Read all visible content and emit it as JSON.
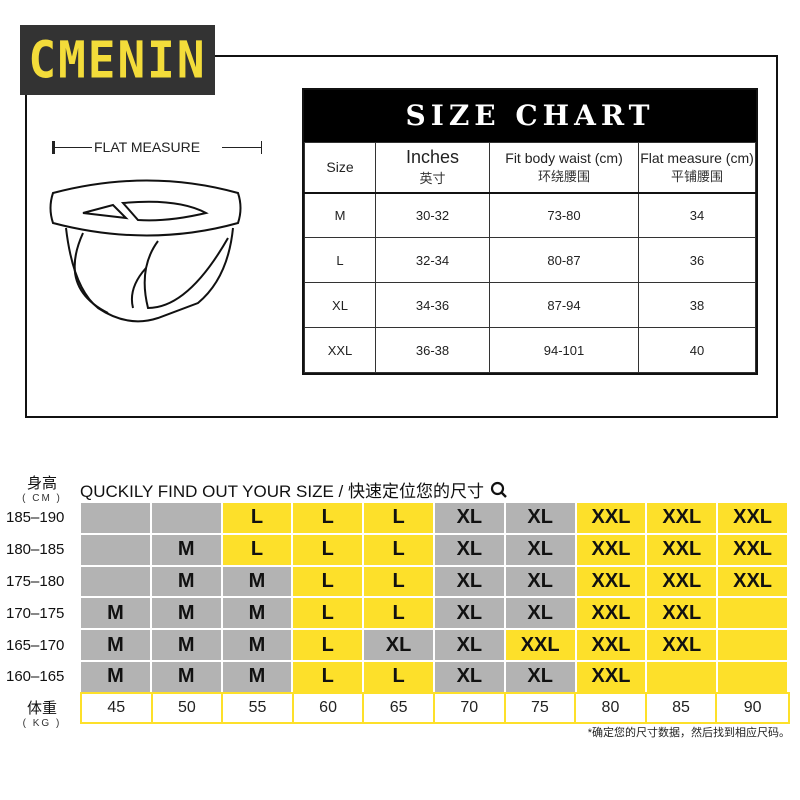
{
  "brand": {
    "logo_text": "CMENIN"
  },
  "diagram": {
    "flat_measure_label": "FLAT  MEASURE"
  },
  "size_chart": {
    "title": "SIZE CHART",
    "headers": [
      {
        "en": "Size",
        "zh": ""
      },
      {
        "en": "Inches",
        "zh": "英寸"
      },
      {
        "en": "Fit body waist (cm)",
        "zh": "环绕腰围"
      },
      {
        "en": "Flat measure (cm)",
        "zh": "平铺腰围"
      }
    ],
    "rows": [
      [
        "M",
        "30-32",
        "73-80",
        "34"
      ],
      [
        "L",
        "32-34",
        "80-87",
        "36"
      ],
      [
        "XL",
        "34-36",
        "87-94",
        "38"
      ],
      [
        "XXL",
        "36-38",
        "94-101",
        "40"
      ]
    ]
  },
  "finder": {
    "title": "QUCKILY FIND OUT YOUR SIZE / 快速定位您的尺寸",
    "icon": "search-icon",
    "height_label": "身高",
    "height_unit": "( CM )",
    "weight_label": "体重",
    "weight_unit": "( KG )",
    "colors": {
      "gray": "#b3b3b3",
      "yellow": "#fde02a"
    },
    "rows": [
      {
        "height": "185–190",
        "cells": [
          "",
          "",
          "L",
          "L",
          "L",
          "XL",
          "XL",
          "XXL",
          "XXL",
          "XXL"
        ],
        "colors": [
          "gray",
          "gray",
          "yellow",
          "yellow",
          "yellow",
          "gray",
          "gray",
          "yellow",
          "yellow",
          "yellow"
        ]
      },
      {
        "height": "180–185",
        "cells": [
          "",
          "M",
          "L",
          "L",
          "L",
          "XL",
          "XL",
          "XXL",
          "XXL",
          "XXL"
        ],
        "colors": [
          "gray",
          "gray",
          "yellow",
          "yellow",
          "yellow",
          "gray",
          "gray",
          "yellow",
          "yellow",
          "yellow"
        ]
      },
      {
        "height": "175–180",
        "cells": [
          "",
          "M",
          "M",
          "L",
          "L",
          "XL",
          "XL",
          "XXL",
          "XXL",
          "XXL"
        ],
        "colors": [
          "gray",
          "gray",
          "gray",
          "yellow",
          "yellow",
          "gray",
          "gray",
          "yellow",
          "yellow",
          "yellow"
        ]
      },
      {
        "height": "170–175",
        "cells": [
          "M",
          "M",
          "M",
          "L",
          "L",
          "XL",
          "XL",
          "XXL",
          "XXL",
          ""
        ],
        "colors": [
          "gray",
          "gray",
          "gray",
          "yellow",
          "yellow",
          "gray",
          "gray",
          "yellow",
          "yellow",
          "yellow"
        ]
      },
      {
        "height": "165–170",
        "cells": [
          "M",
          "M",
          "M",
          "L",
          "XL",
          "XL",
          "XXL",
          "XXL",
          "XXL",
          ""
        ],
        "colors": [
          "gray",
          "gray",
          "gray",
          "yellow",
          "gray",
          "gray",
          "yellow",
          "yellow",
          "yellow",
          "yellow"
        ]
      },
      {
        "height": "160–165",
        "cells": [
          "M",
          "M",
          "M",
          "L",
          "L",
          "XL",
          "XL",
          "XXL",
          "",
          ""
        ],
        "colors": [
          "gray",
          "gray",
          "gray",
          "yellow",
          "yellow",
          "gray",
          "gray",
          "yellow",
          "yellow",
          "yellow"
        ]
      }
    ],
    "weights": [
      "45",
      "50",
      "55",
      "60",
      "65",
      "70",
      "75",
      "80",
      "85",
      "90"
    ],
    "note": "*确定您的尺寸数据，然后找到相应尺码。"
  }
}
